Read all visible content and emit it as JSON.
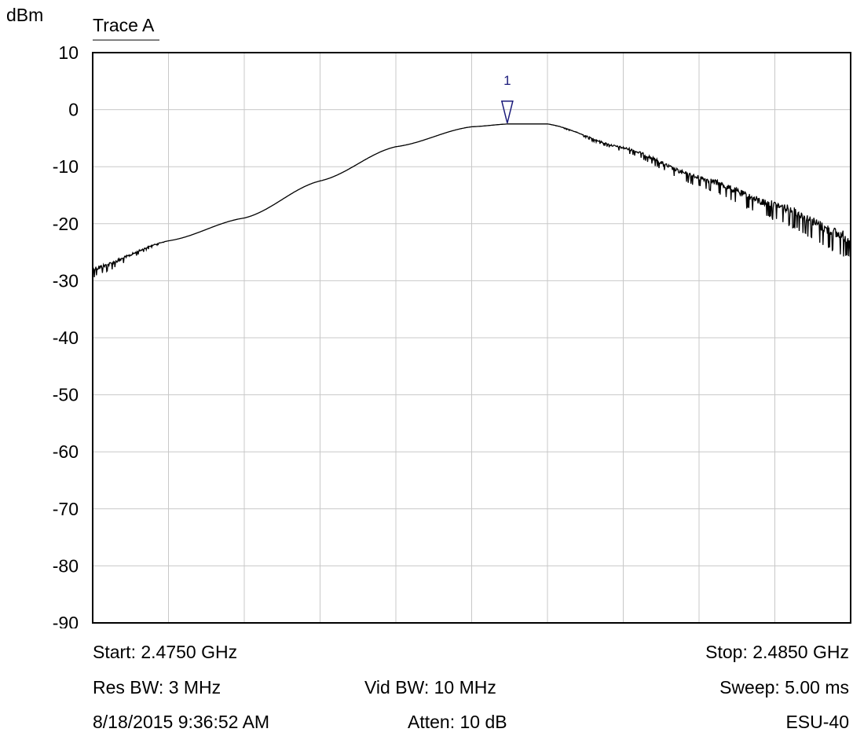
{
  "chart_data": {
    "type": "line",
    "y_unit": "dBm",
    "trace_label": "Trace A",
    "ylim": [
      -90,
      10
    ],
    "y_ticks": [
      10,
      0,
      -10,
      -20,
      -30,
      -40,
      -50,
      -60,
      -70,
      -80,
      -90
    ],
    "x_range_ghz": [
      2.475,
      2.485
    ],
    "grid": true,
    "series": [
      {
        "x": [
          2.475,
          2.476,
          2.477,
          2.478,
          2.479,
          2.48,
          2.4805,
          2.481,
          2.482,
          2.483,
          2.484,
          2.485
        ],
        "y": [
          -27.5,
          -23.0,
          -19.0,
          -12.5,
          -6.5,
          -3.0,
          -2.5,
          -2.5,
          -6.5,
          -11.5,
          -16.0,
          -21.5
        ]
      }
    ],
    "marker": {
      "label": "1",
      "x": 2.48047,
      "y": -2.5,
      "color": "#1a1a7a"
    }
  },
  "footer": {
    "start": "Start: 2.4750 GHz",
    "stop": "Stop: 2.4850 GHz",
    "res_bw": "Res BW: 3 MHz",
    "vid_bw": "Vid BW: 10 MHz",
    "sweep": "Sweep: 5.00 ms",
    "datetime": "8/18/2015 9:36:52 AM",
    "atten": "Atten: 10 dB",
    "instrument": "ESU-40"
  }
}
